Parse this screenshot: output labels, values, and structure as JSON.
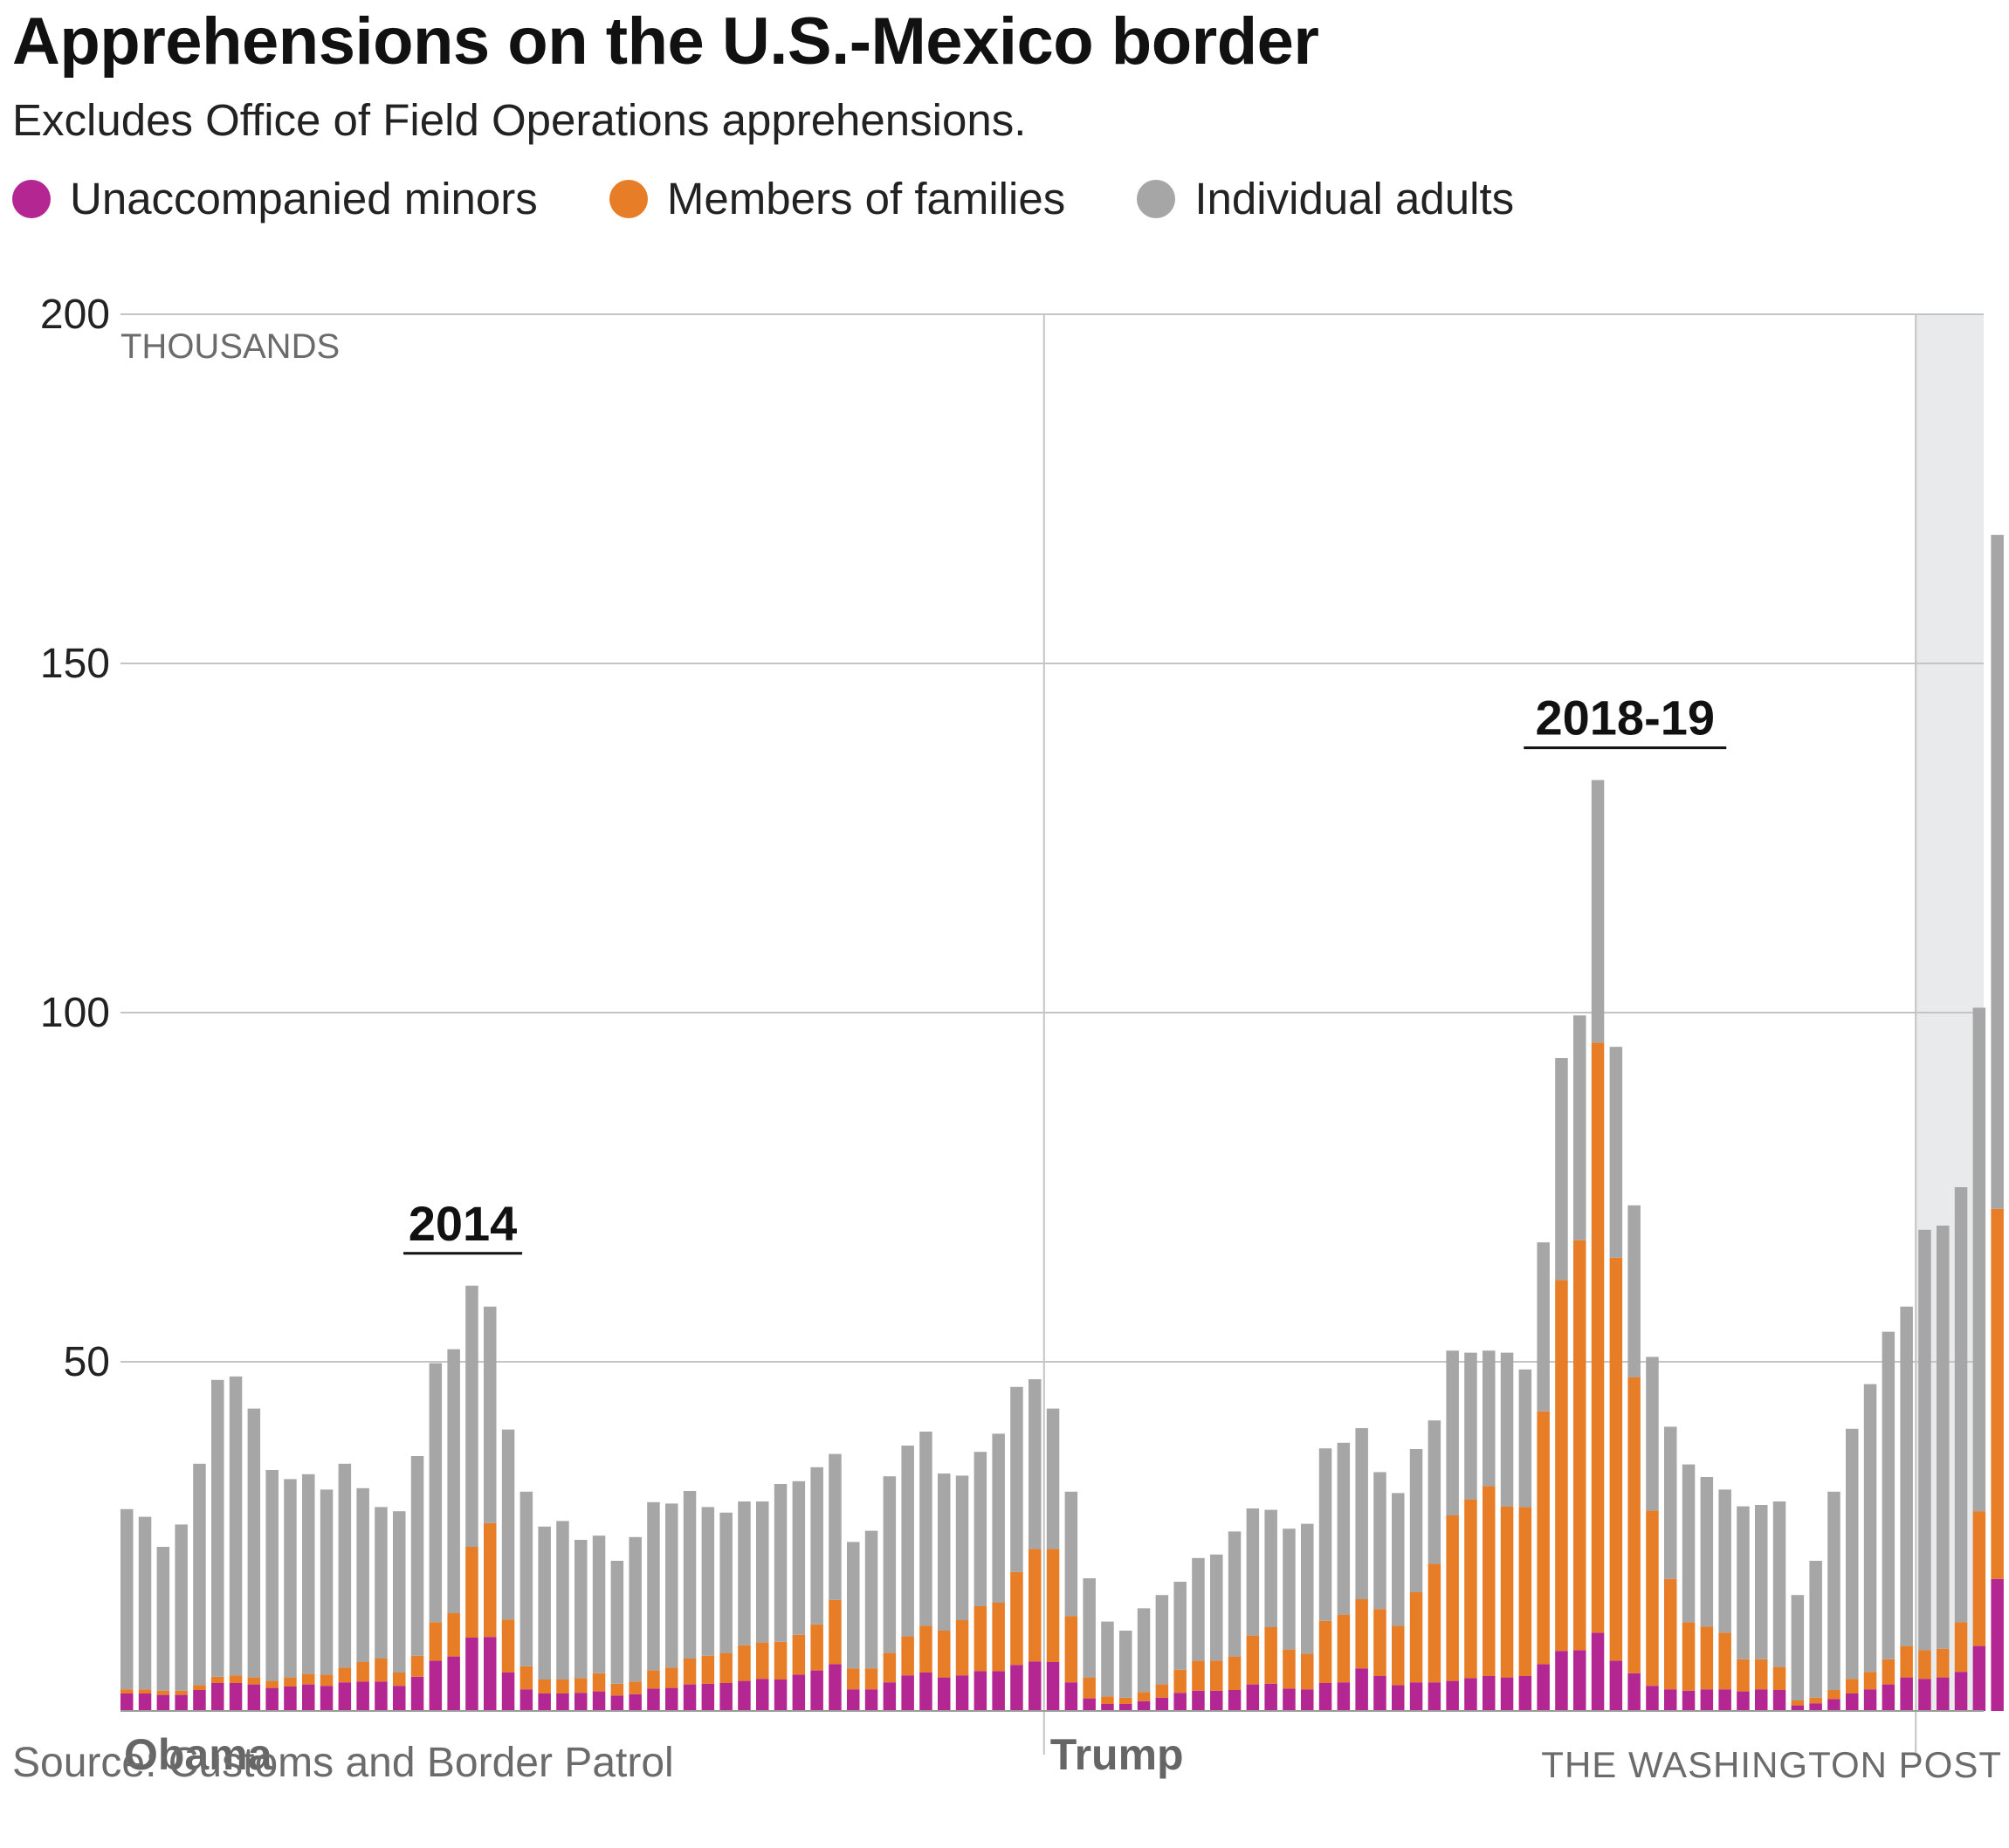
{
  "title": "Apprehensions on the U.S.-Mexico border",
  "subtitle": "Excludes Office of Field Operations apprehensions.",
  "legend": [
    {
      "label": "Unaccompanied minors",
      "color": "#b42691"
    },
    {
      "label": "Members of families",
      "color": "#e87d28"
    },
    {
      "label": "Individual adults",
      "color": "#a6a6a6"
    }
  ],
  "source": "Source: Customs and Border Patrol",
  "credit": "THE WASHINGTON POST",
  "chart_data": {
    "type": "bar",
    "stacked": true,
    "unit_label": "THOUSANDS",
    "ylim": [
      0,
      200
    ],
    "yticks": [
      50,
      100,
      150,
      200
    ],
    "grid": true,
    "period_labels": [
      {
        "label": "Obama",
        "index": 0
      },
      {
        "label": "Trump",
        "index": 51
      }
    ],
    "period_dividers": [
      51,
      99
    ],
    "highlight_from_index": 99,
    "annotations": [
      {
        "label": "2014",
        "from_index": 17,
        "to_index": 20
      },
      {
        "label": "2018-19",
        "from_index": 78,
        "to_index": 87
      }
    ],
    "series": [
      {
        "name": "Unaccompanied minors",
        "color": "#b42691",
        "values": [
          2.5,
          2.5,
          2.3,
          2.3,
          3,
          4,
          4,
          3.8,
          3.3,
          3.5,
          3.8,
          3.6,
          4.1,
          4.2,
          4.2,
          3.6,
          4.9,
          7.2,
          7.8,
          10.5,
          10.6,
          5.5,
          3.1,
          2.5,
          2.5,
          2.6,
          2.8,
          2.2,
          2.4,
          3.2,
          3.3,
          3.8,
          3.9,
          4,
          4.3,
          4.6,
          4.5,
          5.2,
          5.8,
          6.7,
          3.1,
          3.1,
          4.1,
          5.1,
          5.5,
          4.8,
          5.1,
          5.7,
          5.7,
          6.6,
          7.1,
          7,
          4.1,
          1.8,
          1,
          1,
          1.4,
          1.9,
          2.6,
          2.9,
          2.9,
          3,
          3.8,
          3.9,
          3.2,
          3.1,
          4,
          4.1,
          6.1,
          5,
          3.7,
          4.1,
          4.1,
          4.3,
          4.7,
          5,
          4.8,
          5,
          6.7,
          8.6,
          8.7,
          11.2,
          7.2,
          5.4,
          3.6,
          3.1,
          2.9,
          3.1,
          3.1,
          2.8,
          3.1,
          3,
          0.8,
          1.1,
          1.7,
          2.5,
          3.1,
          3.8,
          4.8,
          4.6,
          4.8,
          5.6,
          9.3,
          18.9
        ],
        "labels": []
      },
      {
        "name": "Members of families",
        "color": "#e87d28",
        "values": [
          0.6,
          0.6,
          0.6,
          0.6,
          0.7,
          0.9,
          1.1,
          1,
          1,
          1.3,
          1.5,
          1.6,
          2.1,
          2.8,
          3.3,
          1.9,
          3,
          5.5,
          6.2,
          13,
          16.3,
          7.6,
          3.3,
          2,
          2,
          2.1,
          2.6,
          1.7,
          1.8,
          2.6,
          2.9,
          3.7,
          4,
          4.3,
          5.1,
          5.2,
          5.4,
          5.7,
          6.6,
          9.2,
          3,
          3,
          4.2,
          5.6,
          6.7,
          6.7,
          7.9,
          9.3,
          9.8,
          13.3,
          16.1,
          16.2,
          9.5,
          3,
          1.1,
          0.9,
          1.3,
          1.9,
          3.3,
          4.3,
          4.3,
          4.8,
          7,
          8.1,
          5.6,
          5.1,
          8.9,
          9.7,
          9.9,
          9.6,
          8.5,
          12.9,
          17,
          23.7,
          25.6,
          27.2,
          24.5,
          24.2,
          36.2,
          53.1,
          58.7,
          84.5,
          57.7,
          42.4,
          25.1,
          15.8,
          9.8,
          9,
          8.1,
          4.6,
          4.3,
          3.3,
          0.7,
          0.8,
          1.3,
          2.1,
          2.5,
          3.6,
          4.5,
          4.1,
          4.1,
          7.1,
          19.3,
          53
        ]
      },
      {
        "name": "Individual adults",
        "color": "#a6a6a6",
        "values": [
          25.8,
          24.7,
          20.6,
          23.8,
          31.7,
          42.5,
          42.8,
          38.5,
          30.2,
          28.4,
          28.6,
          26.5,
          29.2,
          24.9,
          21.7,
          23.1,
          28.6,
          37.1,
          37.8,
          37.4,
          31,
          27.2,
          25,
          21.9,
          22.7,
          19.8,
          19.7,
          17.6,
          20.7,
          24.1,
          23.5,
          24,
          21.3,
          20.1,
          20.6,
          20.2,
          22.6,
          22,
          22.5,
          20.9,
          18.1,
          19.7,
          25.3,
          27.3,
          27.8,
          22.5,
          20.7,
          22.1,
          24.2,
          26.5,
          24.3,
          20.1,
          17.8,
          14.2,
          10.7,
          9.6,
          12,
          12.8,
          12.6,
          14.7,
          15.2,
          17.9,
          18.2,
          16.8,
          17.3,
          18.6,
          24.7,
          24.6,
          24.5,
          19.6,
          19,
          20.5,
          20.5,
          23.6,
          21,
          19.4,
          22,
          19.7,
          24.2,
          31.8,
          32.2,
          37.6,
          30.2,
          24.6,
          22,
          21.8,
          22.6,
          21.4,
          20.5,
          21.9,
          22.1,
          23.7,
          15.1,
          19.6,
          28.4,
          35.8,
          41.2,
          46.9,
          48.6,
          60.2,
          60.6,
          62.3,
          72.1,
          96.5
        ]
      }
    ]
  }
}
